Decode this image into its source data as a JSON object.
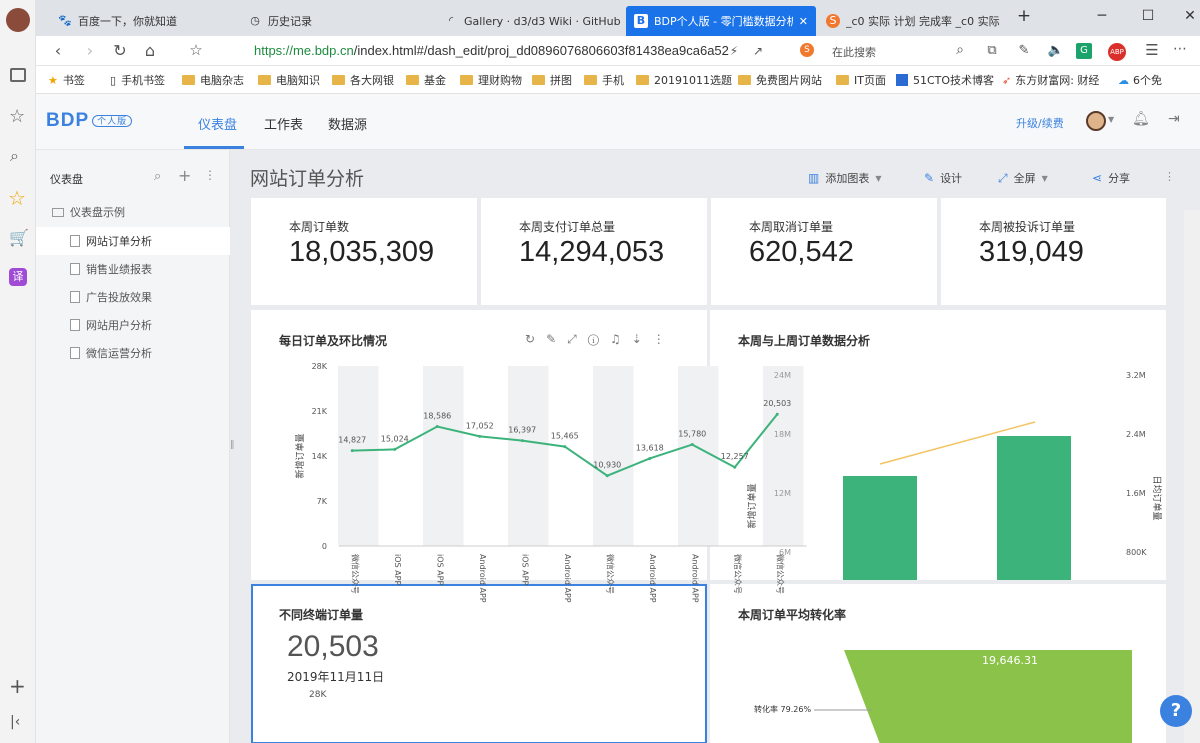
{
  "browser": {
    "tabs": [
      {
        "icon": "paw-icon",
        "title": "百度一下，你就知道"
      },
      {
        "icon": "clock-icon",
        "title": "历史记录"
      },
      {
        "icon": "loading-icon",
        "title": "Gallery · d3/d3 Wiki · GitHub"
      },
      {
        "icon": "bdp-icon",
        "title": "BDP个人版 - 零门槛数据分析"
      },
      {
        "icon": "s-icon",
        "title": "_c0 实际 计划 完成率 _c0 实际"
      }
    ],
    "url_host": "https://me.bdp.cn",
    "url_path": "/index.html#/dash_edit/proj_dd0896076806603f81438ea9ca6a52",
    "search_placeholder": "在此搜索",
    "bookmarks": [
      "书签",
      "手机书签",
      "电脑杂志",
      "电脑知识",
      "各大网银",
      "基金",
      "理财购物",
      "拼图",
      "手机",
      "20191011选题",
      "免费图片网站",
      "IT页面",
      "51CTO技术博客",
      "东方财富网: 财经",
      "6个免"
    ]
  },
  "app": {
    "logo": "BDP",
    "logo_badge": "个人版",
    "nav": [
      "仪表盘",
      "工作表",
      "数据源"
    ],
    "upgrade": "升级/续费"
  },
  "sidebar": {
    "title": "仪表盘",
    "folder": "仪表盘示例",
    "items": [
      "网站订单分析",
      "销售业绩报表",
      "广告投放效果",
      "网站用户分析",
      "微信运营分析"
    ]
  },
  "page": {
    "title": "网站订单分析",
    "toolbar": {
      "add_chart": "添加图表",
      "design": "设计",
      "fullscreen": "全屏",
      "share": "分享"
    }
  },
  "kpis": [
    {
      "label": "本周订单数",
      "value": "18,035,309"
    },
    {
      "label": "本周支付订单总量",
      "value": "14,294,053"
    },
    {
      "label": "本周取消订单量",
      "value": "620,542"
    },
    {
      "label": "本周被投诉订单量",
      "value": "319,049"
    }
  ],
  "panels": {
    "daily": "每日订单及环比情况",
    "weekly": "本周与上周订单数据分析",
    "terminal": "不同终端订单量",
    "conversion": "本周订单平均转化率"
  },
  "terminal": {
    "value": "20,503",
    "date": "2019年11月11日",
    "tick": "28K"
  },
  "conversion": {
    "value": "19,646.31",
    "rate_label": "转化率 79.26%"
  },
  "chart_data": [
    {
      "type": "line",
      "title": "每日订单及环比情况",
      "ylabel": "新增订单量",
      "ylim": [
        0,
        28000
      ],
      "yticks": [
        "28K",
        "21K",
        "14K",
        "7K",
        "0"
      ],
      "categories": [
        "微信公众号",
        "iOS APP",
        "iOS APP",
        "Android APP",
        "iOS APP",
        "Android APP",
        "微信公众号",
        "Android APP",
        "Android APP",
        "微信公众号",
        "微信公众号"
      ],
      "series": [
        {
          "values": [
            14827,
            15024,
            18586,
            17052,
            16397,
            15465,
            10930,
            13618,
            15780,
            12257,
            20503
          ]
        }
      ],
      "value_labels": [
        "14,827",
        "15,024",
        "18,586",
        "17,052",
        "16,397",
        "15,465",
        "10,930",
        "13,618",
        "15,780",
        "12,257",
        "20,503"
      ],
      "overlay_axis": {
        "ylabel": "新增订单量",
        "ticks": [
          "24M",
          "18M",
          "12M",
          "6M"
        ]
      }
    },
    {
      "type": "bar",
      "title": "本周与上周订单数据分析",
      "y2label": "日均订单量",
      "y2ticks": [
        "3.2M",
        "2.4M",
        "1.6M",
        "800K"
      ],
      "colors": {
        "bar": "#3db37c",
        "line": "#f2c462"
      }
    }
  ]
}
